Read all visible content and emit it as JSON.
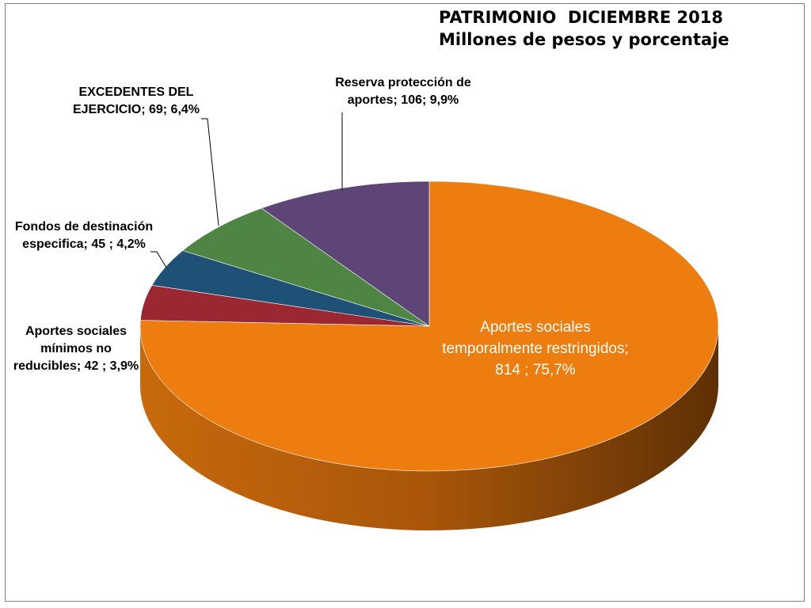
{
  "chart_data": {
    "type": "pie",
    "title": "PATRIMONIO  DICIEMBRE 2018",
    "subtitle": "Millones de pesos y porcentaje",
    "slices": [
      {
        "label_lines": [
          "Aportes sociales",
          "temporalmente restringidos;",
          "814 ; 75,7%"
        ],
        "value": 814,
        "percent": 75.7,
        "color": "#ed7d0e",
        "side": "#b8620c"
      },
      {
        "label_lines": [
          "Aportes sociales",
          "mínimos  no",
          "reducibles;  42 ; 3,9%"
        ],
        "value": 42,
        "percent": 3.9,
        "color": "#9a2731",
        "side": "#731d25"
      },
      {
        "label_lines": [
          "Fondos de destinación",
          "especifica;  45 ; 4,2%"
        ],
        "value": 45,
        "percent": 4.2,
        "color": "#1f5176",
        "side": "#173c58"
      },
      {
        "label_lines": [
          "EXCEDENTES  DEL",
          "EJERCICIO; 69; 6,4%"
        ],
        "value": 69,
        "percent": 6.4,
        "color": "#4e8543",
        "side": "#3a6432"
      },
      {
        "label_lines": [
          "Reserva protección de",
          "aportes; 106; 9,9%"
        ],
        "value": 106,
        "percent": 9.9,
        "color": "#5d4677",
        "side": "#453459"
      }
    ]
  }
}
